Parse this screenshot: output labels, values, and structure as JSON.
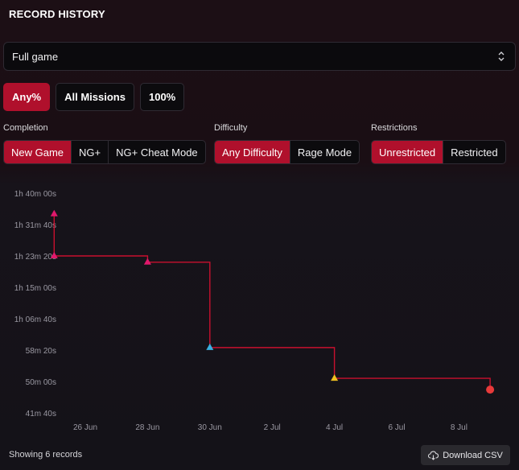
{
  "header": {
    "title": "RECORD HISTORY"
  },
  "game_select": {
    "value": "Full game"
  },
  "categories": [
    {
      "label": "Any%",
      "active": true
    },
    {
      "label": "All Missions",
      "active": false
    },
    {
      "label": "100%",
      "active": false
    }
  ],
  "filters": {
    "completion": {
      "label": "Completion",
      "options": [
        {
          "label": "New Game",
          "active": true
        },
        {
          "label": "NG+",
          "active": false
        },
        {
          "label": "NG+ Cheat Mode",
          "active": false
        }
      ]
    },
    "difficulty": {
      "label": "Difficulty",
      "options": [
        {
          "label": "Any Difficulty",
          "active": true
        },
        {
          "label": "Rage Mode",
          "active": false
        }
      ]
    },
    "restrictions": {
      "label": "Restrictions",
      "options": [
        {
          "label": "Unrestricted",
          "active": true
        },
        {
          "label": "Restricted",
          "active": false
        }
      ]
    }
  },
  "footer": {
    "records_text": "Showing 6 records",
    "download_label": "Download CSV"
  },
  "colors": {
    "accent": "#b0102c",
    "line": "#c8102e",
    "marker_pink": "#e0186c",
    "marker_blue": "#3ab0e0",
    "marker_yellow": "#f0c020",
    "marker_red": "#e83a3a"
  },
  "chart_data": {
    "type": "line",
    "step": true,
    "title": "",
    "xlabel": "",
    "ylabel": "",
    "x_ticks": [
      "26 Jun",
      "28 Jun",
      "30 Jun",
      "2 Jul",
      "4 Jul",
      "6 Jul",
      "8 Jul"
    ],
    "y_ticks": [
      "1h 40m 00s",
      "1h 31m 40s",
      "1h 23m 20s",
      "1h 15m 00s",
      "1h 06m 40s",
      "58m 20s",
      "50m 00s",
      "41m 40s"
    ],
    "y_tick_seconds": [
      6000,
      5500,
      5000,
      4500,
      4000,
      3500,
      3000,
      2500
    ],
    "ylim_seconds": [
      2500,
      6000
    ],
    "grid": false,
    "points": [
      {
        "date": "2025-06-25",
        "seconds": 5670,
        "marker": "triangle",
        "color": "#e0186c"
      },
      {
        "date": "2025-06-25",
        "seconds": 5000,
        "marker": "triangle",
        "color": "#e0186c"
      },
      {
        "date": "2025-06-28",
        "seconds": 4900,
        "marker": "triangle",
        "color": "#e0186c"
      },
      {
        "date": "2025-06-30",
        "seconds": 3540,
        "marker": "triangle",
        "color": "#3ab0e0"
      },
      {
        "date": "2025-07-04",
        "seconds": 3050,
        "marker": "triangle",
        "color": "#f0c020"
      },
      {
        "date": "2025-07-09",
        "seconds": 2870,
        "marker": "circle",
        "color": "#e83a3a"
      }
    ]
  }
}
